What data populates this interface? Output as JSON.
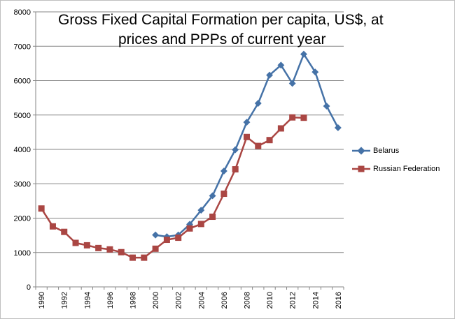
{
  "chart_data": {
    "type": "line",
    "title_line1": "Gross Fixed Capital Formation per capita, US$, at",
    "title_line2": "prices and PPPs of current year",
    "xlabel": "",
    "ylabel": "",
    "ylim": [
      0,
      8000
    ],
    "y_ticks": [
      "0",
      "1000",
      "2000",
      "3000",
      "4000",
      "5000",
      "6000",
      "7000",
      "8000"
    ],
    "x_range": [
      1990,
      2016
    ],
    "x_ticks": [
      "1990",
      "1992",
      "1994",
      "1996",
      "1998",
      "2000",
      "2002",
      "2004",
      "2006",
      "2008",
      "2010",
      "2012",
      "2014",
      "2016"
    ],
    "gridlines": "horizontal",
    "legend_position": "right",
    "series": [
      {
        "name": "Belarus",
        "color": "#4572a7",
        "marker": "diamond",
        "x": [
          2000,
          2001,
          2002,
          2003,
          2004,
          2005,
          2006,
          2007,
          2008,
          2009,
          2010,
          2011,
          2012,
          2013,
          2014,
          2015,
          2016
        ],
        "values": [
          1510,
          1460,
          1510,
          1820,
          2230,
          2650,
          3370,
          3990,
          4790,
          5340,
          6160,
          6450,
          5920,
          6770,
          6250,
          5260,
          4630
        ]
      },
      {
        "name": "Russian Federation",
        "color": "#aa4643",
        "marker": "square",
        "x": [
          1990,
          1991,
          1992,
          1993,
          1994,
          1995,
          1996,
          1997,
          1998,
          1999,
          2000,
          2001,
          2002,
          2003,
          2004,
          2005,
          2006,
          2007,
          2008,
          2009,
          2010,
          2011,
          2012,
          2013
        ],
        "values": [
          2280,
          1760,
          1600,
          1280,
          1210,
          1130,
          1090,
          1010,
          850,
          850,
          1110,
          1370,
          1430,
          1700,
          1830,
          2040,
          2710,
          3420,
          4360,
          4100,
          4270,
          4610,
          4930,
          4920
        ]
      }
    ]
  }
}
